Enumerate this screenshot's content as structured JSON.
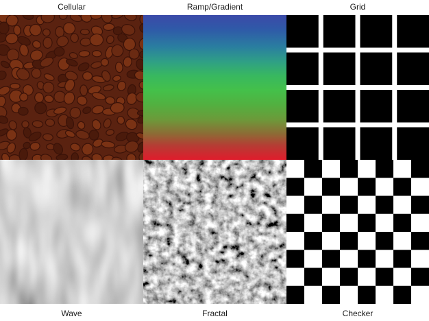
{
  "labels": {
    "top": [
      "Cellular",
      "Ramp/Gradient",
      "Grid"
    ],
    "bottom": [
      "Wave",
      "Fractal",
      "Checker"
    ]
  },
  "colors": {
    "cellular_base": "#5a2210",
    "cellular_cell": "#7a3214",
    "cellular_crack": "#3a1208",
    "grid_square": "#000000",
    "grid_line": "#ffffff",
    "checker_dark": "#000000",
    "checker_light": "#ffffff"
  },
  "patterns": {
    "grid_cells_per_side": 4,
    "checker_cells_per_side": 8
  }
}
